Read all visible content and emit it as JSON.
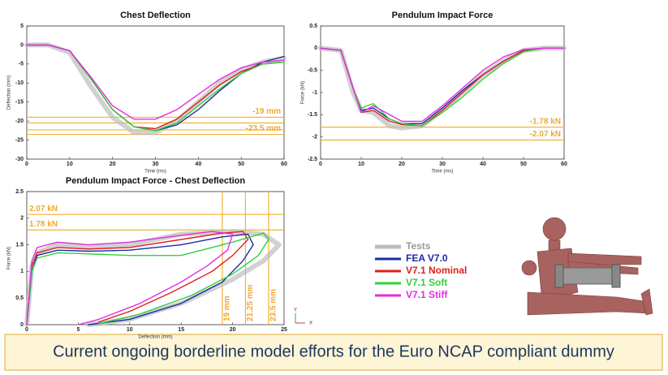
{
  "chart_data": [
    {
      "type": "line",
      "title": "Chest Deflection",
      "x_label": "Time (ms)",
      "y_label": "Deflection (mm)",
      "xlim": [
        0,
        60
      ],
      "xticks": [
        0,
        10,
        20,
        30,
        40,
        50,
        60
      ],
      "ylim": [
        -30,
        5
      ],
      "yticks": [
        5,
        0,
        -5,
        -10,
        -15,
        -20,
        -25,
        -30
      ],
      "x": [
        0,
        5,
        10,
        15,
        20,
        25,
        30,
        35,
        40,
        45,
        50,
        55,
        60
      ],
      "hlines": [
        {
          "value": -19,
          "label": "-19 mm"
        },
        {
          "value": -20.5
        },
        {
          "value": -22.3
        },
        {
          "value": -23.5,
          "label": "-23.5 mm"
        }
      ],
      "series": [
        {
          "color": "#bdbdbd",
          "values": [
            0,
            0,
            -2,
            -11,
            -19,
            -23,
            -23,
            -20,
            -15,
            -10,
            -6.5,
            -4.5,
            -3.5
          ]
        },
        {
          "color": "#1c2aa8",
          "values": [
            0,
            0,
            -1.5,
            -9,
            -17,
            -21.5,
            -22.5,
            -21,
            -17,
            -12,
            -7.5,
            -4.5,
            -3
          ]
        },
        {
          "color": "#e0201c",
          "values": [
            0,
            0,
            -1.5,
            -9,
            -17,
            -21.5,
            -22,
            -19.5,
            -15,
            -10.5,
            -7,
            -5,
            -4.5
          ]
        },
        {
          "color": "#2fd13a",
          "values": [
            0,
            0,
            -1.5,
            -9,
            -17,
            -21.5,
            -22.5,
            -20.5,
            -16,
            -11.5,
            -7.5,
            -5,
            -4.5
          ]
        },
        {
          "color": "#e02ee0",
          "values": [
            0,
            0,
            -1.5,
            -8.5,
            -16,
            -19.5,
            -19.5,
            -17,
            -13,
            -9,
            -6,
            -4.5,
            -4
          ]
        }
      ]
    },
    {
      "type": "line",
      "title": "Pendulum Impact Force",
      "x_label": "Time (ms)",
      "y_label": "Force (kN)",
      "xlim": [
        0,
        60
      ],
      "xticks": [
        0,
        10,
        20,
        30,
        40,
        50,
        60
      ],
      "ylim": [
        -2.5,
        0.5
      ],
      "yticks": [
        0.5,
        0,
        -0.5,
        -1,
        -1.5,
        -2,
        -2.5
      ],
      "x": [
        0,
        5,
        8,
        10,
        13,
        17,
        20,
        25,
        30,
        35,
        40,
        45,
        50,
        55,
        60
      ],
      "hlines": [
        {
          "value": -1.78,
          "label": "-1.78 kN"
        },
        {
          "value": -2.07,
          "label": "-2.07 kN"
        }
      ],
      "series": [
        {
          "color": "#bdbdbd",
          "values": [
            0,
            -0.05,
            -1.0,
            -1.4,
            -1.45,
            -1.75,
            -1.8,
            -1.75,
            -1.4,
            -1.0,
            -0.6,
            -0.3,
            -0.05,
            0,
            0
          ]
        },
        {
          "color": "#1c2aa8",
          "values": [
            0,
            -0.05,
            -0.9,
            -1.4,
            -1.35,
            -1.6,
            -1.7,
            -1.7,
            -1.35,
            -0.95,
            -0.6,
            -0.3,
            -0.05,
            0,
            0
          ]
        },
        {
          "color": "#e0201c",
          "values": [
            0,
            -0.05,
            -0.9,
            -1.45,
            -1.4,
            -1.65,
            -1.72,
            -1.75,
            -1.4,
            -1.0,
            -0.6,
            -0.3,
            -0.05,
            0,
            0
          ]
        },
        {
          "color": "#2fd13a",
          "values": [
            0,
            -0.05,
            -0.9,
            -1.35,
            -1.25,
            -1.6,
            -1.7,
            -1.75,
            -1.45,
            -1.1,
            -0.7,
            -0.35,
            -0.08,
            0,
            0
          ]
        },
        {
          "color": "#e02ee0",
          "values": [
            0,
            -0.05,
            -0.9,
            -1.45,
            -1.3,
            -1.5,
            -1.65,
            -1.65,
            -1.3,
            -0.9,
            -0.5,
            -0.2,
            -0.03,
            0,
            0
          ]
        }
      ]
    },
    {
      "type": "line",
      "title": "Pendulum Impact Force - Chest Deflection",
      "x_label": "Deflection (mm)",
      "y_label": "Force (kN)",
      "xlim": [
        0,
        25
      ],
      "xticks": [
        0,
        5,
        10,
        15,
        20,
        25
      ],
      "ylim": [
        0,
        2.5
      ],
      "yticks": [
        0,
        0.5,
        1,
        1.5,
        2,
        2.5
      ],
      "hlines": [
        {
          "value": 2.07,
          "label": "2.07 kN"
        },
        {
          "value": 1.78,
          "label": "1.78 kN"
        }
      ],
      "vlines": [
        {
          "value": 19,
          "label": "19 mm"
        },
        {
          "value": 21.25,
          "label": "21.25 mm"
        },
        {
          "value": 23.5,
          "label": "23.5 mm"
        }
      ],
      "series": [
        {
          "name": "Tests",
          "color": "#bdbdbd",
          "x": [
            0,
            0.5,
            1,
            3,
            6,
            10,
            15,
            20,
            23,
            24.5,
            23,
            20,
            15,
            10,
            6
          ],
          "values": [
            0,
            1.1,
            1.35,
            1.5,
            1.45,
            1.5,
            1.7,
            1.75,
            1.7,
            1.5,
            1.2,
            0.85,
            0.4,
            0.1,
            0
          ]
        },
        {
          "name": "FEA  V7.0",
          "color": "#1c2aa8",
          "x": [
            0,
            0.5,
            1,
            3,
            6,
            10,
            15,
            19,
            21.5,
            22,
            21,
            19,
            15,
            10,
            6
          ],
          "values": [
            0,
            1.0,
            1.3,
            1.4,
            1.38,
            1.4,
            1.5,
            1.65,
            1.7,
            1.5,
            1.2,
            0.8,
            0.4,
            0.1,
            0
          ]
        },
        {
          "name": "V7.1 Nominal",
          "color": "#e0201c",
          "x": [
            0,
            0.5,
            1,
            3,
            6,
            10,
            15,
            19,
            21,
            21.5,
            20,
            18,
            14,
            10,
            7
          ],
          "values": [
            0,
            1.1,
            1.35,
            1.45,
            1.42,
            1.45,
            1.6,
            1.72,
            1.75,
            1.6,
            1.3,
            1.0,
            0.6,
            0.25,
            0.05
          ]
        },
        {
          "name": "V7.1 Soft",
          "color": "#2fd13a",
          "x": [
            0,
            0.5,
            1,
            3,
            6,
            10,
            15,
            20,
            23,
            23.5,
            22.5,
            20,
            16,
            11,
            7
          ],
          "values": [
            0,
            1.0,
            1.25,
            1.35,
            1.33,
            1.3,
            1.3,
            1.55,
            1.72,
            1.6,
            1.3,
            0.95,
            0.55,
            0.2,
            0.02
          ]
        },
        {
          "name": "V7.1 Stiff",
          "color": "#e02ee0",
          "x": [
            0,
            0.5,
            1,
            3,
            6,
            10,
            15,
            18,
            20,
            19.5,
            17.5,
            15,
            11,
            7,
            5
          ],
          "values": [
            0,
            1.2,
            1.45,
            1.55,
            1.5,
            1.55,
            1.68,
            1.75,
            1.7,
            1.4,
            1.1,
            0.8,
            0.4,
            0.1,
            0
          ]
        }
      ]
    }
  ],
  "triad_labels": [
    "Y",
    "X"
  ],
  "caption": "Current ongoing borderline model efforts for the Euro NCAP compliant dummy"
}
